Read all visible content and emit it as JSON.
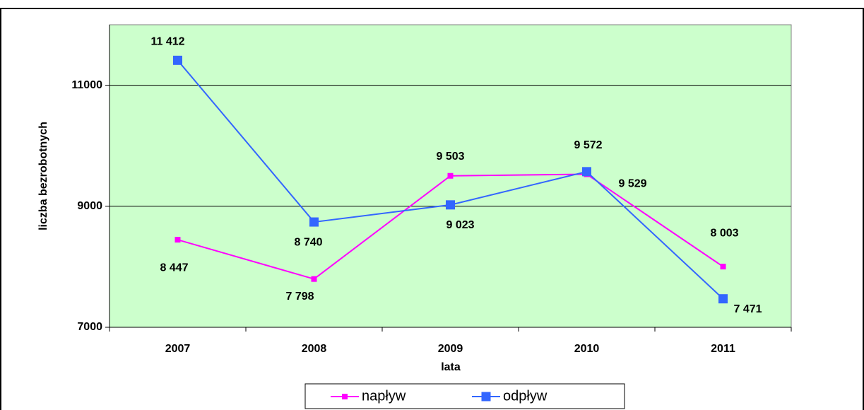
{
  "chart_data": {
    "type": "line",
    "x_label": "lata",
    "y_label": "liczba bezrobotnych",
    "categories": [
      "2007",
      "2008",
      "2009",
      "2010",
      "2011"
    ],
    "series": [
      {
        "name": "napływ",
        "color": "#ff00ff",
        "values": [
          8447,
          7798,
          9503,
          9529,
          8003
        ],
        "value_labels": [
          "8 447",
          "7 798",
          "9 503",
          "9 529",
          "8 003"
        ]
      },
      {
        "name": "odpływ",
        "color": "#3366ff",
        "values": [
          11412,
          8740,
          9023,
          9572,
          7471
        ],
        "value_labels": [
          "11 412",
          "8 740",
          "9 023",
          "9 572",
          "7 471"
        ]
      }
    ],
    "ylim": [
      7000,
      12000
    ],
    "yticks": [
      7000,
      9000,
      11000
    ],
    "grid": true,
    "plot_background": "#ccffcc",
    "legend": "bottom"
  }
}
